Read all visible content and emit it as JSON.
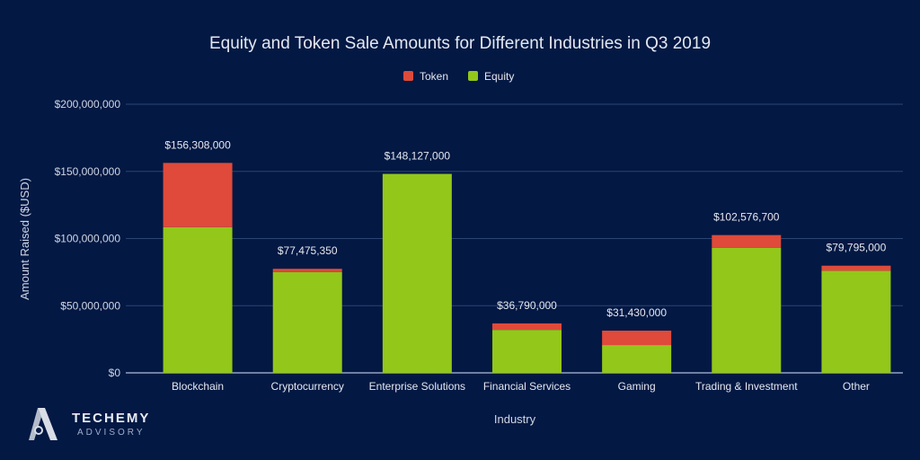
{
  "chart_data": {
    "type": "bar",
    "stacked": true,
    "title": "Equity and Token Sale Amounts for Different Industries in Q3 2019",
    "xlabel": "Industry",
    "ylabel": "Amount Raised ($USD)",
    "ylim": [
      0,
      200000000
    ],
    "yticks": [
      0,
      50000000,
      100000000,
      150000000,
      200000000
    ],
    "ytick_labels": [
      "$0",
      "$50,000,000",
      "$100,000,000",
      "$150,000,000",
      "$200,000,000"
    ],
    "grid": true,
    "legend_position": "top-center",
    "categories": [
      "Blockchain",
      "Cryptocurrency",
      "Enterprise Solutions",
      "Financial Services",
      "Gaming",
      "Trading & Investment",
      "Other"
    ],
    "series": [
      {
        "name": "Equity",
        "color": "#93c71a",
        "values": [
          108500000,
          75000000,
          148127000,
          32000000,
          20700000,
          93000000,
          76000000
        ]
      },
      {
        "name": "Token",
        "color": "#df4a3a",
        "values": [
          47808000,
          2475350,
          0,
          4790000,
          10730000,
          9576700,
          3795000
        ]
      }
    ],
    "legend": [
      {
        "name": "Token",
        "color": "#df4a3a"
      },
      {
        "name": "Equity",
        "color": "#93c71a"
      }
    ],
    "totals": [
      156308000,
      77475350,
      148127000,
      36790000,
      31430000,
      102576700,
      79795000
    ],
    "total_labels": [
      "$156,308,000",
      "$77,475,350",
      "$148,127,000",
      "$36,790,000",
      "$31,430,000",
      "$102,576,700",
      "$79,795,000"
    ]
  },
  "branding": {
    "name": "TECHEMY",
    "subtitle": "ADVISORY"
  }
}
